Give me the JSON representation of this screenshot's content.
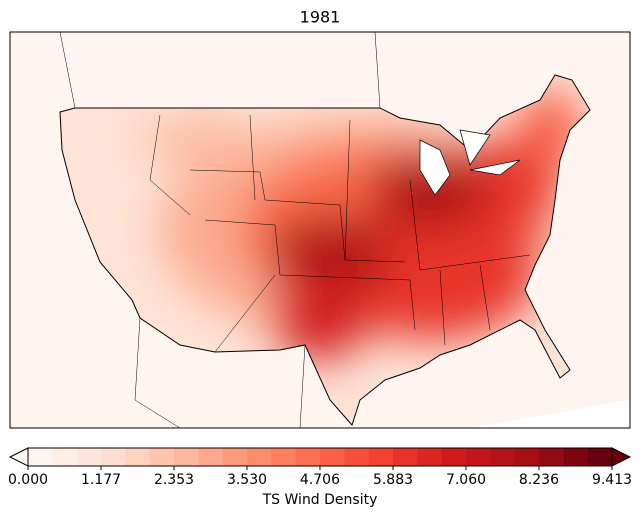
{
  "chart_data": {
    "type": "map",
    "title": "1981",
    "colorbar": {
      "label": "TS Wind Density",
      "colormap": "Reds",
      "clim": [
        0,
        9.413
      ],
      "n_levels": 24,
      "extend": "both",
      "ticks": [
        {
          "value": 0,
          "label": "0.000"
        },
        1.177,
        2.353,
        {
          "value": 3.53,
          "label": "3.530"
        },
        4.706,
        5.883,
        {
          "value": 7.06,
          "label": "7.060"
        },
        8.236,
        9.413
      ]
    }
  }
}
